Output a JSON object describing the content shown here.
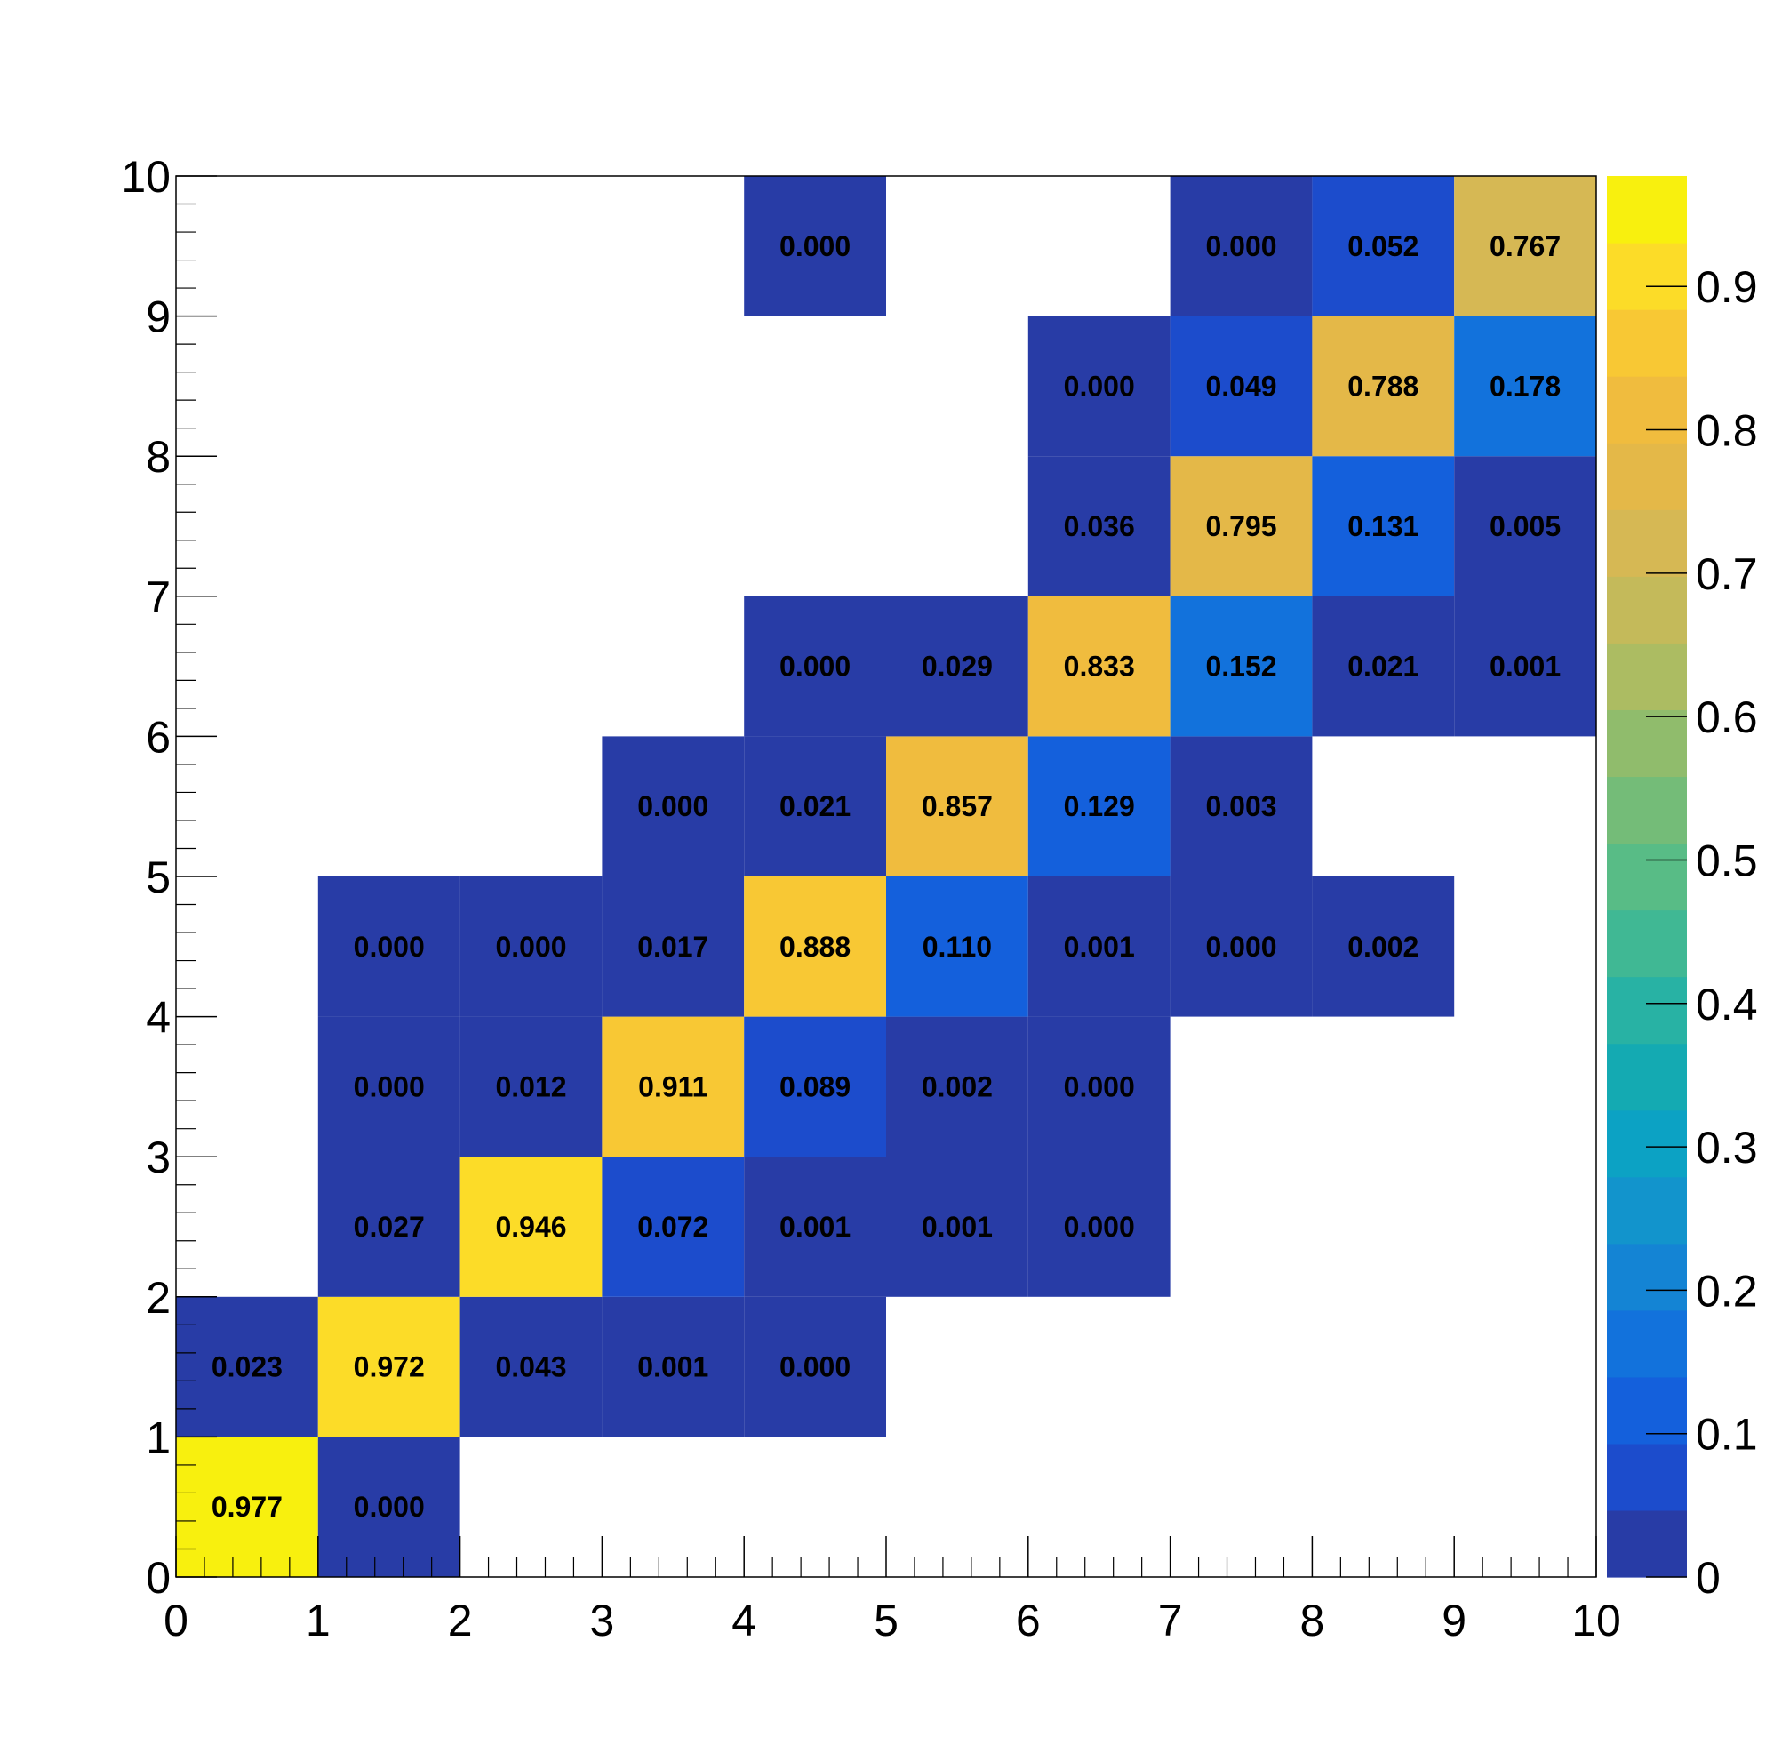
{
  "chart_data": {
    "type": "heatmap",
    "title": "",
    "xlabel": "",
    "ylabel": "",
    "xlim": [
      0,
      10
    ],
    "ylim": [
      0,
      10
    ],
    "x_tick_labels": [
      "0",
      "1",
      "2",
      "3",
      "4",
      "5",
      "6",
      "7",
      "8",
      "9",
      "10"
    ],
    "y_tick_labels": [
      "0",
      "1",
      "2",
      "3",
      "4",
      "5",
      "6",
      "7",
      "8",
      "9",
      "10"
    ],
    "colorbar": {
      "range": [
        0,
        0.977
      ],
      "tick_values": [
        0,
        0.1,
        0.2,
        0.3,
        0.4,
        0.5,
        0.6,
        0.7,
        0.8,
        0.9
      ],
      "tick_labels": [
        "0",
        "0.1",
        "0.2",
        "0.3",
        "0.4",
        "0.5",
        "0.6",
        "0.7",
        "0.8",
        "0.9"
      ],
      "bands": 20,
      "palette": [
        "#283ca6",
        "#1c4ccc",
        "#1460dc",
        "#1272dc",
        "#1484d4",
        "#1294cc",
        "#0ca2c4",
        "#14aab2",
        "#28b2a4",
        "#40b894",
        "#58bc86",
        "#74bc78",
        "#90bc6c",
        "#acbc62",
        "#c4ba5a",
        "#d6b854",
        "#e4b848",
        "#f0bc3e",
        "#f8c834",
        "#fcdc28",
        "#f8f00e"
      ]
    },
    "cells": [
      {
        "x": 0,
        "y": 0,
        "value": 0.977,
        "label": "0.977"
      },
      {
        "x": 1,
        "y": 0,
        "value": 0.0,
        "label": "0.000"
      },
      {
        "x": 0,
        "y": 1,
        "value": 0.023,
        "label": "0.023"
      },
      {
        "x": 1,
        "y": 1,
        "value": 0.972,
        "label": "0.972"
      },
      {
        "x": 2,
        "y": 1,
        "value": 0.043,
        "label": "0.043"
      },
      {
        "x": 3,
        "y": 1,
        "value": 0.001,
        "label": "0.001"
      },
      {
        "x": 4,
        "y": 1,
        "value": 0.0,
        "label": "0.000"
      },
      {
        "x": 1,
        "y": 2,
        "value": 0.027,
        "label": "0.027"
      },
      {
        "x": 2,
        "y": 2,
        "value": 0.946,
        "label": "0.946"
      },
      {
        "x": 3,
        "y": 2,
        "value": 0.072,
        "label": "0.072"
      },
      {
        "x": 4,
        "y": 2,
        "value": 0.001,
        "label": "0.001"
      },
      {
        "x": 5,
        "y": 2,
        "value": 0.001,
        "label": "0.001"
      },
      {
        "x": 6,
        "y": 2,
        "value": 0.0,
        "label": "0.000"
      },
      {
        "x": 1,
        "y": 3,
        "value": 0.0,
        "label": "0.000"
      },
      {
        "x": 2,
        "y": 3,
        "value": 0.012,
        "label": "0.012"
      },
      {
        "x": 3,
        "y": 3,
        "value": 0.911,
        "label": "0.911"
      },
      {
        "x": 4,
        "y": 3,
        "value": 0.089,
        "label": "0.089"
      },
      {
        "x": 5,
        "y": 3,
        "value": 0.002,
        "label": "0.002"
      },
      {
        "x": 6,
        "y": 3,
        "value": 0.0,
        "label": "0.000"
      },
      {
        "x": 1,
        "y": 4,
        "value": 0.0,
        "label": "0.000"
      },
      {
        "x": 2,
        "y": 4,
        "value": 0.0,
        "label": "0.000"
      },
      {
        "x": 3,
        "y": 4,
        "value": 0.017,
        "label": "0.017"
      },
      {
        "x": 4,
        "y": 4,
        "value": 0.888,
        "label": "0.888"
      },
      {
        "x": 5,
        "y": 4,
        "value": 0.11,
        "label": "0.110"
      },
      {
        "x": 6,
        "y": 4,
        "value": 0.001,
        "label": "0.001"
      },
      {
        "x": 7,
        "y": 4,
        "value": 0.0,
        "label": "0.000"
      },
      {
        "x": 8,
        "y": 4,
        "value": 0.002,
        "label": "0.002"
      },
      {
        "x": 3,
        "y": 5,
        "value": 0.0,
        "label": "0.000"
      },
      {
        "x": 4,
        "y": 5,
        "value": 0.021,
        "label": "0.021"
      },
      {
        "x": 5,
        "y": 5,
        "value": 0.857,
        "label": "0.857"
      },
      {
        "x": 6,
        "y": 5,
        "value": 0.129,
        "label": "0.129"
      },
      {
        "x": 7,
        "y": 5,
        "value": 0.003,
        "label": "0.003"
      },
      {
        "x": 4,
        "y": 6,
        "value": 0.0,
        "label": "0.000"
      },
      {
        "x": 5,
        "y": 6,
        "value": 0.029,
        "label": "0.029"
      },
      {
        "x": 6,
        "y": 6,
        "value": 0.833,
        "label": "0.833"
      },
      {
        "x": 7,
        "y": 6,
        "value": 0.152,
        "label": "0.152"
      },
      {
        "x": 8,
        "y": 6,
        "value": 0.021,
        "label": "0.021"
      },
      {
        "x": 9,
        "y": 6,
        "value": 0.001,
        "label": "0.001"
      },
      {
        "x": 6,
        "y": 7,
        "value": 0.036,
        "label": "0.036"
      },
      {
        "x": 7,
        "y": 7,
        "value": 0.795,
        "label": "0.795"
      },
      {
        "x": 8,
        "y": 7,
        "value": 0.131,
        "label": "0.131"
      },
      {
        "x": 9,
        "y": 7,
        "value": 0.005,
        "label": "0.005"
      },
      {
        "x": 6,
        "y": 8,
        "value": 0.0,
        "label": "0.000"
      },
      {
        "x": 7,
        "y": 8,
        "value": 0.049,
        "label": "0.049"
      },
      {
        "x": 8,
        "y": 8,
        "value": 0.788,
        "label": "0.788"
      },
      {
        "x": 9,
        "y": 8,
        "value": 0.178,
        "label": "0.178"
      },
      {
        "x": 4,
        "y": 9,
        "value": 0.0,
        "label": "0.000"
      },
      {
        "x": 7,
        "y": 9,
        "value": 0.0,
        "label": "0.000"
      },
      {
        "x": 8,
        "y": 9,
        "value": 0.052,
        "label": "0.052"
      },
      {
        "x": 9,
        "y": 9,
        "value": 0.767,
        "label": "0.767"
      }
    ]
  }
}
